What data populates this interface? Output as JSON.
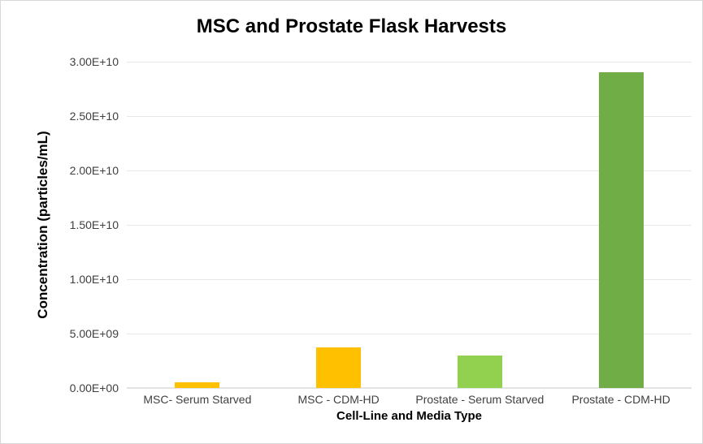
{
  "chart_data": {
    "type": "bar",
    "title": "MSC and Prostate Flask Harvests",
    "xlabel": "Cell-Line and Media Type",
    "ylabel": "Concentration (particles/mL)",
    "categories": [
      "MSC- Serum Starved",
      "MSC - CDM-HD",
      "Prostate - Serum Starved",
      "Prostate - CDM-HD"
    ],
    "values": [
      500000000.0,
      3700000000.0,
      3000000000.0,
      29000000000.0
    ],
    "bar_colors": [
      "#FFC000",
      "#FFC000",
      "#92D050",
      "#70AD47"
    ],
    "ylim": [
      0,
      30000000000.0
    ],
    "ytick_interval": 5000000000.0,
    "ytick_labels": [
      "0.00E+00",
      "5.00E+09",
      "1.00E+10",
      "1.50E+10",
      "2.00E+10",
      "2.50E+10",
      "3.00E+10"
    ],
    "grid": true,
    "legend": "none",
    "gridline_color": "#E8E8E8",
    "background_color": "#FFFFFF",
    "title_color": "#000000",
    "tick_label_color": "#404040"
  }
}
